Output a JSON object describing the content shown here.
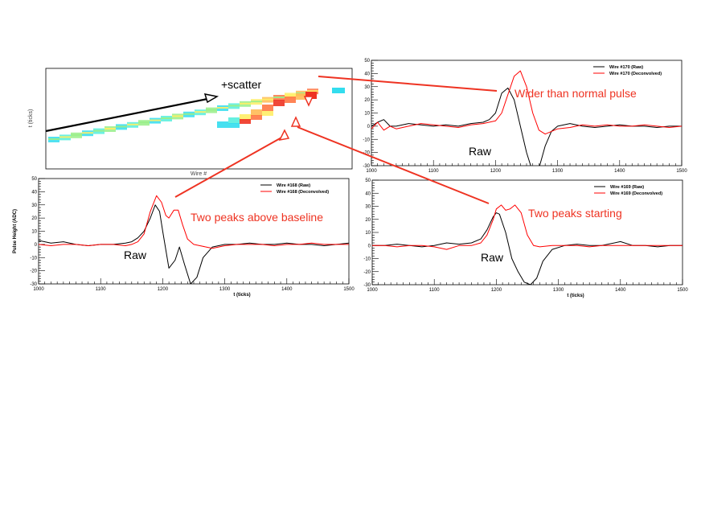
{
  "event_display": {
    "xlabel": "Wire #",
    "ylabel": "t (ticks)",
    "annotation": "+scatter"
  },
  "callouts": {
    "wider": "Wider than normal pulse",
    "two_peaks_above": "Two peaks above baseline",
    "two_peaks_starting": "Two peaks starting"
  },
  "common": {
    "raw_label": "Raw",
    "ylabel": "Pulse Height (ADC)",
    "xlabel": "t (ticks)"
  },
  "colors": {
    "raw": "#000000",
    "deconvolved": "#ff0000",
    "callout": "#ee3322"
  },
  "chart_data": [
    {
      "type": "line",
      "id": "wire170",
      "xlim": [
        1000,
        1500
      ],
      "ylim": [
        -30,
        50
      ],
      "xticks": [
        1000,
        1100,
        1200,
        1300,
        1400,
        1500
      ],
      "yticks": [
        -30,
        -20,
        -10,
        0,
        10,
        20,
        30,
        40,
        50
      ],
      "legend_position": "top-right",
      "series": [
        {
          "name": "Wire #170 (Raw)",
          "color": "#000000",
          "x": [
            1000,
            1010,
            1020,
            1030,
            1040,
            1060,
            1080,
            1100,
            1120,
            1140,
            1160,
            1180,
            1190,
            1200,
            1210,
            1220,
            1230,
            1240,
            1250,
            1258,
            1270,
            1280,
            1290,
            1300,
            1320,
            1340,
            1360,
            1380,
            1400,
            1420,
            1440,
            1460,
            1480,
            1500
          ],
          "y": [
            0,
            3,
            5,
            0,
            0,
            2,
            1,
            0,
            1,
            0,
            2,
            3,
            5,
            10,
            25,
            29,
            20,
            0,
            -20,
            -32,
            -32,
            -15,
            -4,
            0,
            2,
            0,
            -1,
            0,
            1,
            0,
            0,
            -1,
            0,
            0
          ]
        },
        {
          "name": "Wire #170 (Deconvolved)",
          "color": "#ff0000",
          "x": [
            1000,
            1010,
            1020,
            1030,
            1040,
            1060,
            1080,
            1100,
            1120,
            1140,
            1160,
            1180,
            1200,
            1210,
            1220,
            1230,
            1240,
            1250,
            1260,
            1270,
            1280,
            1290,
            1300,
            1320,
            1340,
            1360,
            1380,
            1400,
            1420,
            1440,
            1460,
            1480,
            1500
          ],
          "y": [
            -2,
            3,
            -3,
            0,
            -2,
            0,
            2,
            1,
            0,
            -1,
            1,
            2,
            4,
            10,
            24,
            38,
            42,
            30,
            10,
            -3,
            -6,
            -4,
            -2,
            -1,
            1,
            0,
            1,
            0,
            0,
            1,
            0,
            -1,
            0
          ]
        }
      ]
    },
    {
      "type": "line",
      "id": "wire168",
      "xlim": [
        1000,
        1500
      ],
      "ylim": [
        -30,
        50
      ],
      "xticks": [
        1000,
        1100,
        1200,
        1300,
        1400,
        1500
      ],
      "yticks": [
        -30,
        -20,
        -10,
        0,
        10,
        20,
        30,
        40,
        50
      ],
      "xlabel": "t (ticks)",
      "ylabel": "Pulse Height (ADC)",
      "legend_position": "top-right",
      "series": [
        {
          "name": "Wire #168 (Raw)",
          "color": "#000000",
          "x": [
            1000,
            1020,
            1040,
            1060,
            1080,
            1100,
            1120,
            1140,
            1150,
            1160,
            1170,
            1180,
            1188,
            1195,
            1200,
            1210,
            1220,
            1227,
            1235,
            1245,
            1255,
            1265,
            1280,
            1300,
            1320,
            1340,
            1360,
            1380,
            1400,
            1420,
            1440,
            1460,
            1480,
            1500
          ],
          "y": [
            3,
            1,
            2,
            0,
            -1,
            0,
            0,
            1,
            2,
            5,
            10,
            20,
            30,
            25,
            10,
            -18,
            -12,
            -2,
            -15,
            -30,
            -25,
            -10,
            -2,
            0,
            0,
            1,
            0,
            0,
            1,
            0,
            0,
            -1,
            0,
            1
          ]
        },
        {
          "name": "Wire #168 (Deconvolved)",
          "color": "#ff0000",
          "x": [
            1000,
            1020,
            1040,
            1060,
            1080,
            1100,
            1120,
            1140,
            1150,
            1160,
            1170,
            1180,
            1190,
            1198,
            1205,
            1210,
            1218,
            1225,
            1232,
            1240,
            1250,
            1260,
            1270,
            1280,
            1300,
            1320,
            1340,
            1360,
            1380,
            1400,
            1420,
            1440,
            1460,
            1480,
            1500
          ],
          "y": [
            0,
            -1,
            0,
            0,
            -1,
            0,
            0,
            -1,
            0,
            2,
            8,
            25,
            37,
            32,
            22,
            20,
            26,
            26,
            15,
            4,
            0,
            -1,
            -2,
            -3,
            -1,
            0,
            0,
            0,
            -1,
            0,
            0,
            1,
            0,
            0,
            0
          ]
        }
      ]
    },
    {
      "type": "line",
      "id": "wire169",
      "xlim": [
        1000,
        1500
      ],
      "ylim": [
        -30,
        50
      ],
      "xticks": [
        1000,
        1100,
        1200,
        1300,
        1400,
        1500
      ],
      "yticks": [
        -30,
        -20,
        -10,
        0,
        10,
        20,
        30,
        40,
        50
      ],
      "xlabel": "t (ticks)",
      "legend_position": "top-right",
      "series": [
        {
          "name": "Wire #169 (Raw)",
          "color": "#000000",
          "x": [
            1000,
            1020,
            1040,
            1060,
            1080,
            1100,
            1120,
            1140,
            1160,
            1175,
            1185,
            1195,
            1200,
            1205,
            1215,
            1225,
            1235,
            1245,
            1255,
            1265,
            1275,
            1290,
            1310,
            1330,
            1350,
            1370,
            1400,
            1420,
            1440,
            1460,
            1480,
            1500
          ],
          "y": [
            0,
            0,
            1,
            0,
            -1,
            0,
            2,
            1,
            2,
            5,
            12,
            22,
            25,
            24,
            10,
            -10,
            -20,
            -28,
            -30,
            -25,
            -12,
            -3,
            0,
            1,
            0,
            0,
            3,
            0,
            0,
            -1,
            0,
            0
          ]
        },
        {
          "name": "Wire #169 (Deconvolved)",
          "color": "#ff0000",
          "x": [
            1000,
            1020,
            1040,
            1060,
            1080,
            1100,
            1120,
            1140,
            1160,
            1175,
            1185,
            1195,
            1200,
            1208,
            1215,
            1222,
            1230,
            1240,
            1250,
            1260,
            1270,
            1290,
            1310,
            1330,
            1350,
            1370,
            1400,
            1420,
            1440,
            1460,
            1480,
            1500
          ],
          "y": [
            0,
            0,
            -1,
            0,
            0,
            -1,
            -3,
            0,
            0,
            2,
            8,
            20,
            28,
            31,
            27,
            28,
            31,
            25,
            8,
            0,
            -1,
            0,
            0,
            0,
            -1,
            0,
            0,
            0,
            0,
            0,
            0,
            0
          ]
        }
      ]
    }
  ]
}
